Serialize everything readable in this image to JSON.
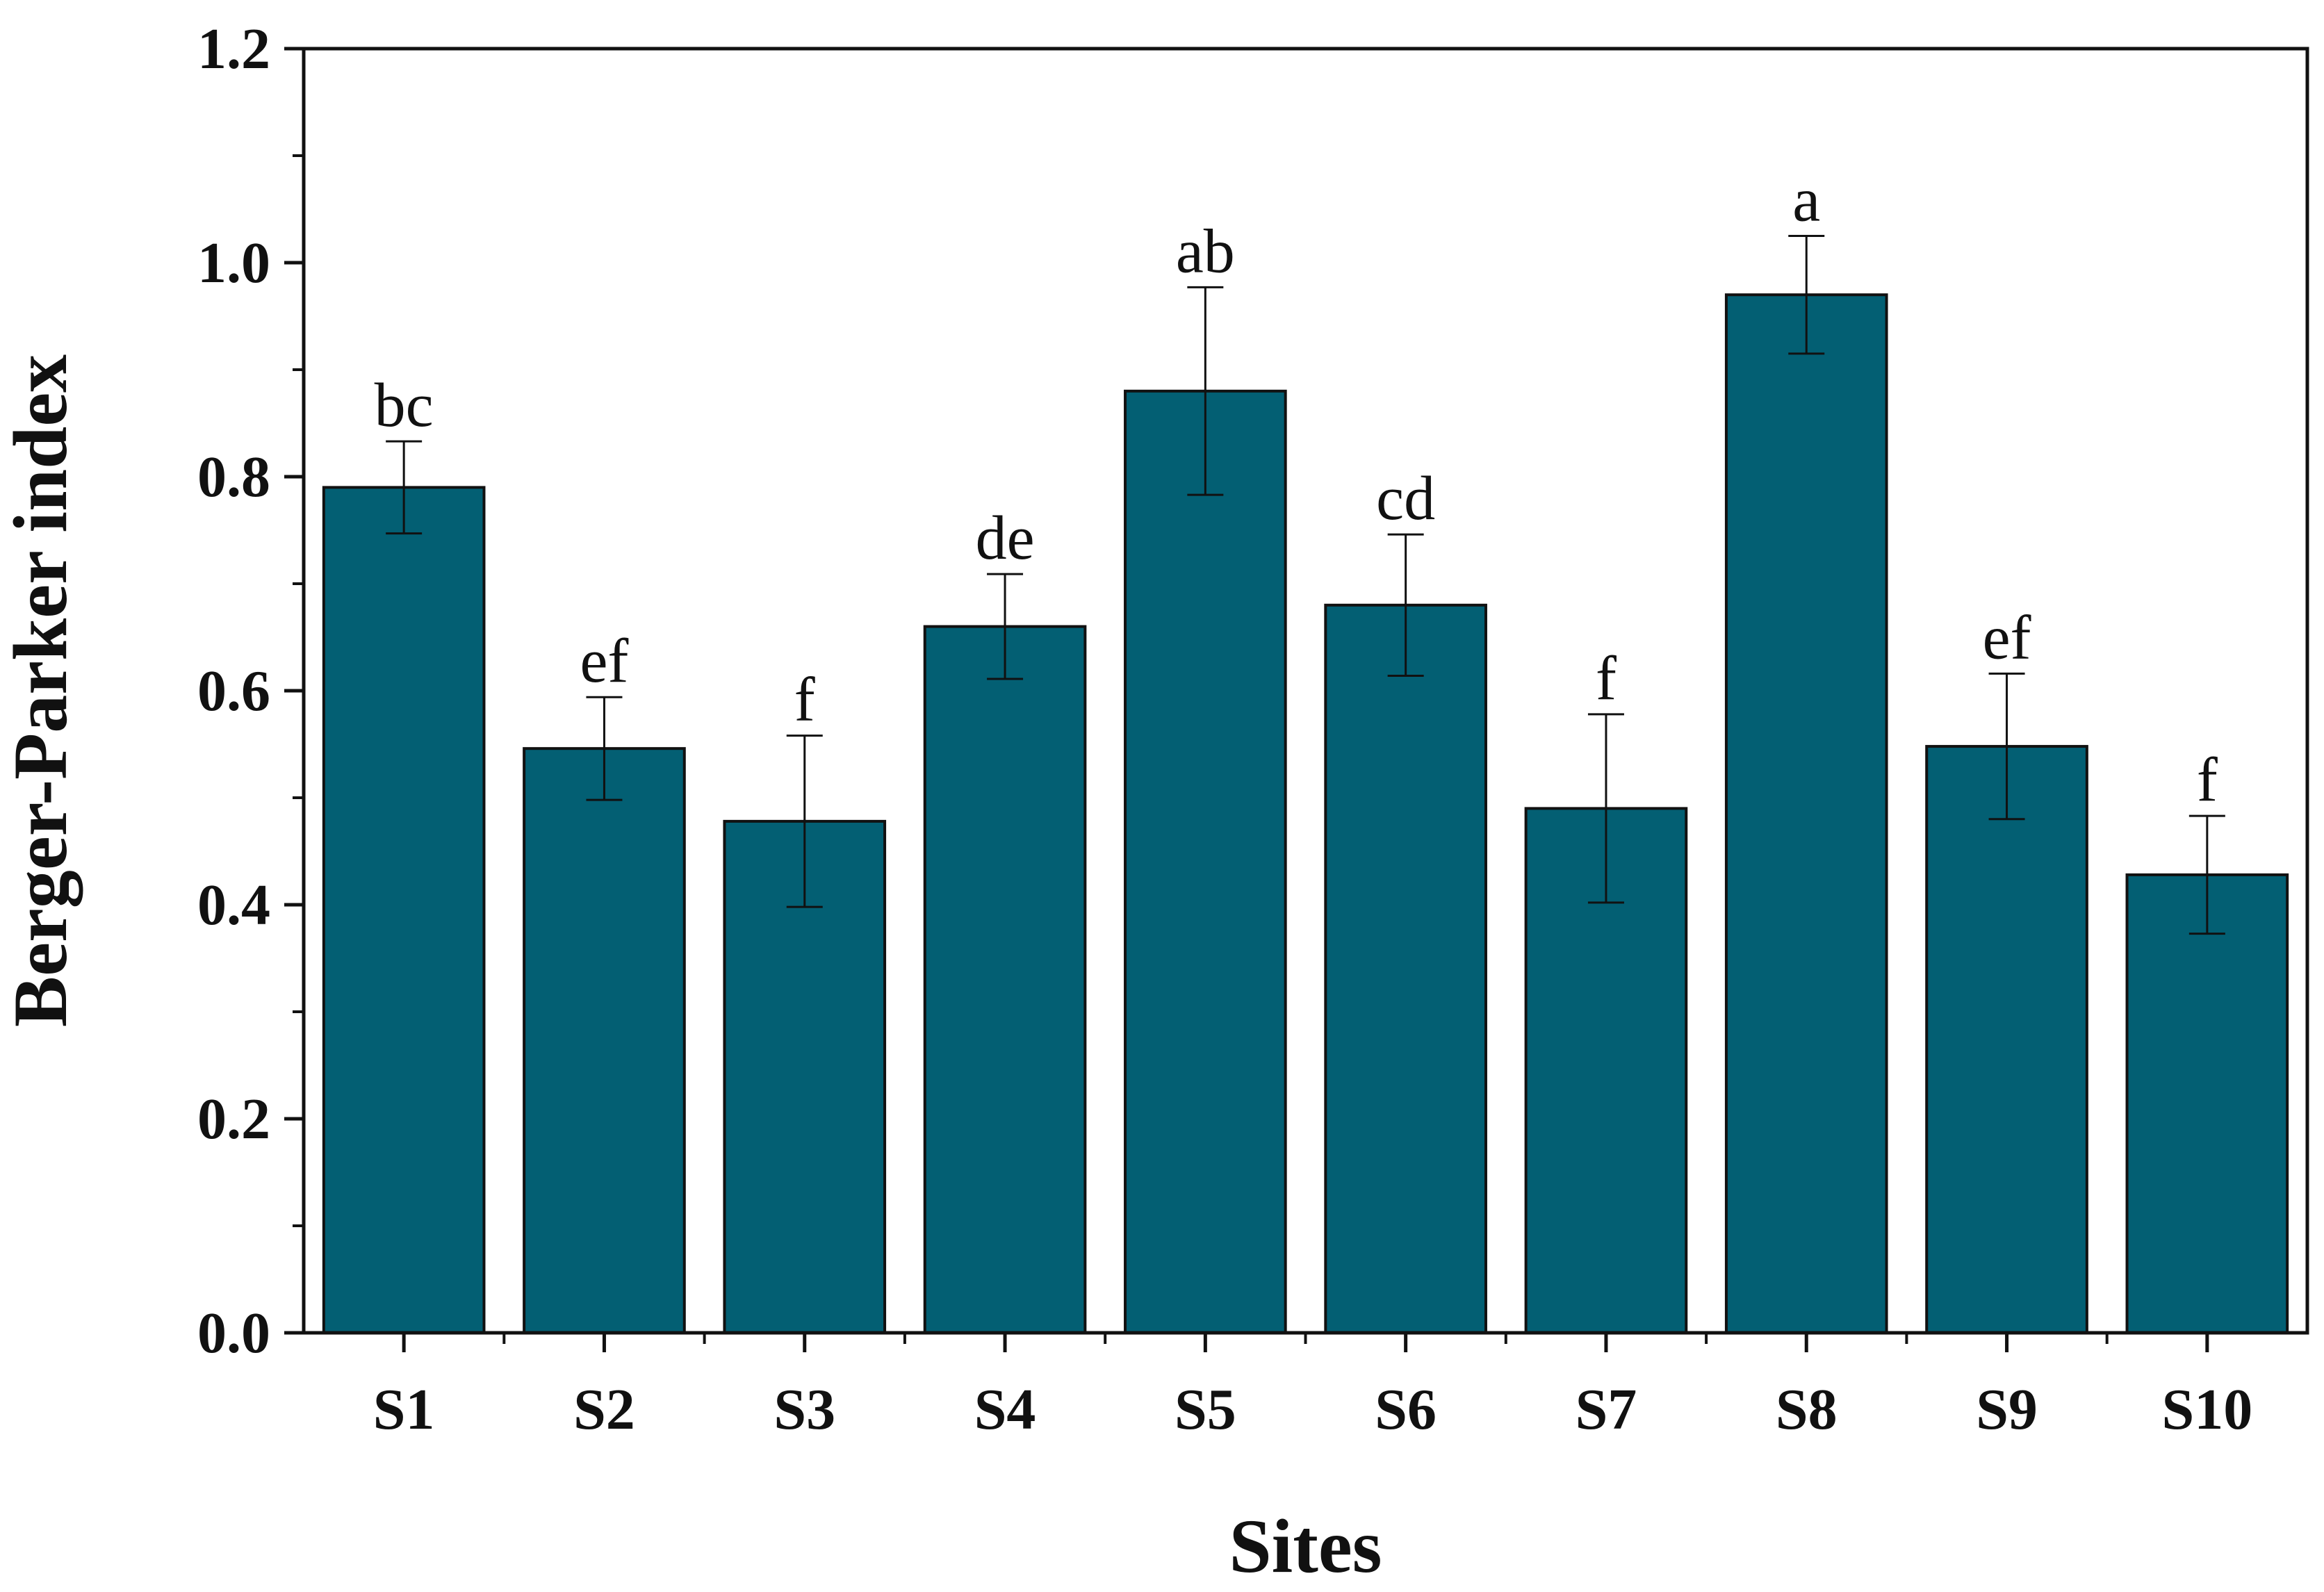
{
  "chart_data": {
    "type": "bar",
    "xlabel": "Sites",
    "ylabel": "Berger-Parker index",
    "ylim": [
      0,
      1.2
    ],
    "yticks": [
      "0.0",
      "0.2",
      "0.4",
      "0.6",
      "0.8",
      "1.0",
      "1.2"
    ],
    "categories": [
      "S1",
      "S2",
      "S3",
      "S4",
      "S5",
      "S6",
      "S7",
      "S8",
      "S9",
      "S10"
    ],
    "values": [
      0.79,
      0.546,
      0.478,
      0.66,
      0.88,
      0.68,
      0.49,
      0.97,
      0.548,
      0.428
    ],
    "errors": [
      0.043,
      0.048,
      0.08,
      0.049,
      0.097,
      0.066,
      0.088,
      0.055,
      0.068,
      0.055
    ],
    "significance_labels": [
      "bc",
      "ef",
      "f",
      "de",
      "ab",
      "cd",
      "f",
      "a",
      "ef",
      "f"
    ],
    "bar_color": "#035f73",
    "grid": false,
    "legend": false
  }
}
